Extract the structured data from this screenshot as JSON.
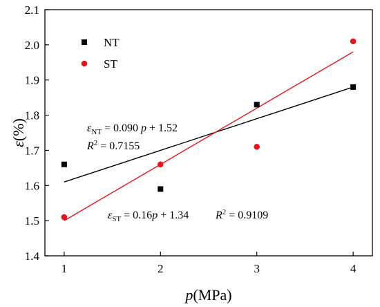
{
  "chart_data": {
    "type": "scatter",
    "title": "",
    "x_axis": {
      "label_italic": "p",
      "label_rest": "(MPa)",
      "range": [
        0.8,
        4.2
      ],
      "ticks": [
        1,
        2,
        3,
        4
      ],
      "tick_labels": [
        "1",
        "2",
        "3",
        "4"
      ]
    },
    "y_axis": {
      "label_italic": "ε",
      "label_rest": "(%)",
      "range": [
        1.4,
        2.1
      ],
      "ticks": [
        1.4,
        1.5,
        1.6,
        1.7,
        1.8,
        1.9,
        2.0,
        2.1
      ],
      "tick_labels": [
        "1.4",
        "1.5",
        "1.6",
        "1.7",
        "1.8",
        "1.9",
        "2.0",
        "2.1"
      ]
    },
    "grid": false,
    "legend_position": "top-left",
    "series": [
      {
        "name": "NT",
        "marker": "square",
        "color": "#000000",
        "x": [
          1,
          2,
          3,
          4
        ],
        "y": [
          1.66,
          1.59,
          1.83,
          1.88
        ],
        "fit": {
          "slope": 0.09,
          "intercept": 1.52,
          "x_range": [
            1,
            4
          ],
          "color": "#000000"
        }
      },
      {
        "name": "ST",
        "marker": "circle",
        "color": "#e8161b",
        "x": [
          1,
          2,
          3,
          4
        ],
        "y": [
          1.51,
          1.66,
          1.71,
          2.01
        ],
        "fit": {
          "slope": 0.16,
          "intercept": 1.34,
          "x_range": [
            1,
            4
          ],
          "color": "#e8161b"
        }
      }
    ],
    "annotations": {
      "nt_equation": {
        "eps": "ε",
        "sub": "NT",
        "rest": " = 0.090 ",
        "var": "p",
        "tail": " + 1.52"
      },
      "nt_r2": {
        "r": "R",
        "sup": "2",
        "rest": " = 0.7155"
      },
      "st_equation": {
        "eps": "ε",
        "sub": "ST",
        "rest": " = 0.16",
        "var": "p",
        "tail": " + 1.34"
      },
      "st_r2": {
        "r": "R",
        "sup": "2",
        "rest": " = 0.9109"
      }
    }
  }
}
